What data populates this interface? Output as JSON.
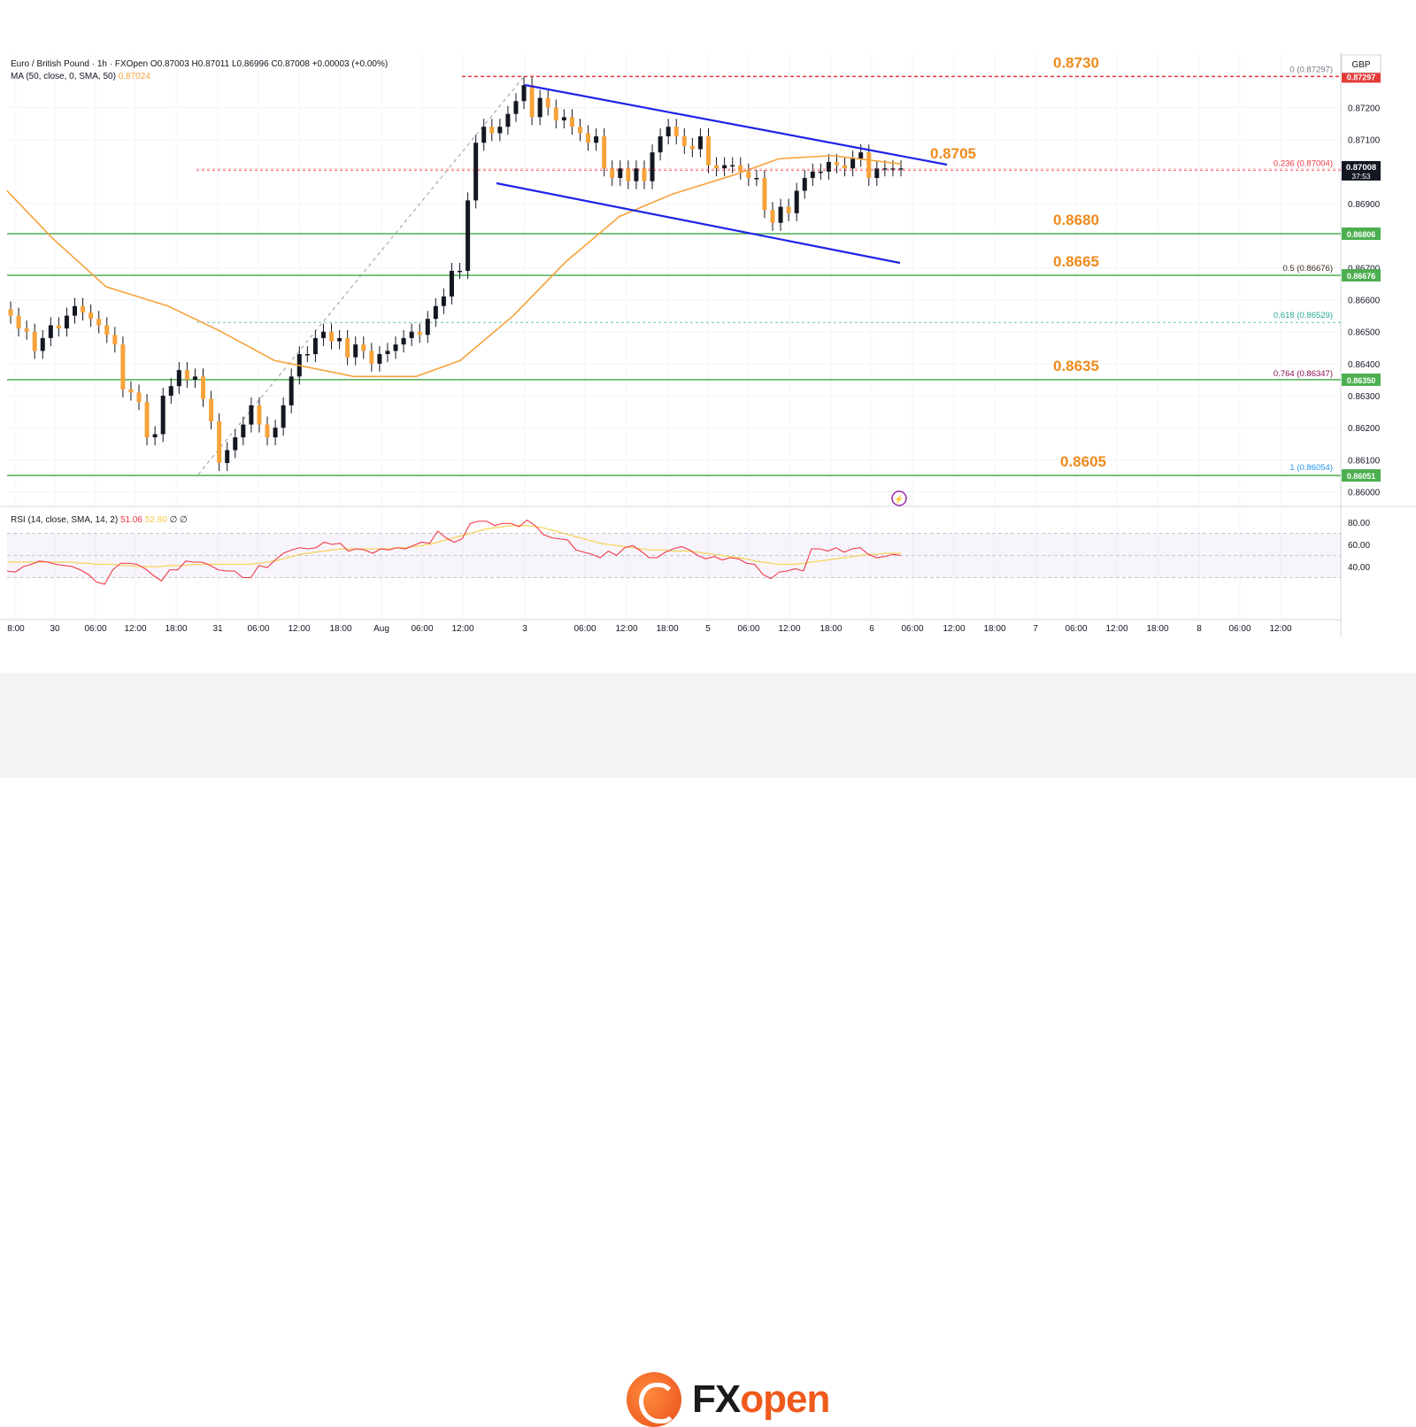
{
  "header": {
    "symbol_line": "Euro / British Pound · 1h · FXOpen  O0.87003  H0.87011  L0.86996  C0.87008  +0.00003 (+0.00%)",
    "ma_label": "MA (50, close, 0, SMA, 50)",
    "ma_value": "0.87024",
    "currency": "GBP"
  },
  "rsi_panel": {
    "label": "RSI (14, close, SMA, 14, 2)",
    "rsi_value": "51.06",
    "sma_value": "52.80",
    "extra": "∅  ∅",
    "upper_band": 70,
    "lower_band": 30
  },
  "logo": {
    "fx": "FX",
    "open": "open"
  },
  "chart_data": {
    "type": "candlestick",
    "title": "",
    "x_axis": {
      "tick_labels": [
        "8:00",
        "30",
        "06:00",
        "12:00",
        "18:00",
        "31",
        "06:00",
        "12:00",
        "18:00",
        "Aug",
        "06:00",
        "12:00",
        "3",
        "06:00",
        "12:00",
        "18:00",
        "5",
        "06:00",
        "12:00",
        "18:00",
        "6",
        "06:00",
        "12:00",
        "18:00",
        "7",
        "06:00",
        "12:00",
        "18:00",
        "8",
        "06:00",
        "12:00"
      ]
    },
    "y_axis": {
      "range": [
        0.8596,
        0.8737
      ],
      "tick_labels": [
        "0.87200",
        "0.87100",
        "0.86900",
        "0.86700",
        "0.86600",
        "0.86500",
        "0.86400",
        "0.86300",
        "0.86200",
        "0.86100",
        "0.86000"
      ],
      "tick_values": [
        0.872,
        0.871,
        0.869,
        0.867,
        0.866,
        0.865,
        0.864,
        0.863,
        0.862,
        0.861,
        0.86
      ]
    },
    "price_tag": {
      "price": "0.87008",
      "countdown": "37:53",
      "value": 0.87008
    },
    "levels": [
      {
        "label": "0.8730",
        "value": 0.87297,
        "axis_tag": "0.87297",
        "color": "#e53935",
        "style": "dashed"
      },
      {
        "label": "0.8680",
        "value": 0.86806,
        "axis_tag": "0.86806",
        "color": "#4caf50",
        "style": "solid"
      },
      {
        "label": "0.8665",
        "value": 0.86676,
        "axis_tag": "0.86676",
        "color": "#4caf50",
        "style": "solid"
      },
      {
        "label": "0.8635",
        "value": 0.8635,
        "axis_tag": "0.86350",
        "color": "#4caf50",
        "style": "solid"
      },
      {
        "label": "0.8605",
        "value": 0.86051,
        "axis_tag": "0.86051",
        "color": "#4caf50",
        "style": "solid"
      }
    ],
    "trendline_label": "0.8705",
    "fibonacci": [
      {
        "label": "0 (0.87297)",
        "value": 0.87297,
        "color": "#787b86"
      },
      {
        "label": "0.236 (0.87004)",
        "value": 0.87004,
        "color": "#f23645"
      },
      {
        "label": "0.5 (0.86676)",
        "value": 0.86676,
        "color": "#3b2b1b"
      },
      {
        "label": "0.618 (0.86529)",
        "value": 0.86529,
        "color": "#22ab94"
      },
      {
        "label": "0.764 (0.86347)",
        "value": 0.86347,
        "color": "#880e4f"
      },
      {
        "label": "1 (0.86054)",
        "value": 0.86054,
        "color": "#2196f3"
      }
    ],
    "candles_close": [
      0.8655,
      0.8651,
      0.865,
      0.8644,
      0.8648,
      0.8652,
      0.8651,
      0.8655,
      0.8658,
      0.8656,
      0.8654,
      0.8652,
      0.8649,
      0.8646,
      0.8632,
      0.8631,
      0.8628,
      0.8617,
      0.8618,
      0.863,
      0.8633,
      0.8638,
      0.8635,
      0.8636,
      0.8629,
      0.8622,
      0.8609,
      0.8613,
      0.8617,
      0.8621,
      0.8627,
      0.8621,
      0.8617,
      0.862,
      0.8627,
      0.8636,
      0.8643,
      0.8643,
      0.8648,
      0.865,
      0.8647,
      0.8648,
      0.8642,
      0.8646,
      0.8644,
      0.864,
      0.8643,
      0.8644,
      0.8646,
      0.8648,
      0.865,
      0.8649,
      0.8654,
      0.8658,
      0.8661,
      0.8669,
      0.8669,
      0.8691,
      0.8709,
      0.8714,
      0.8712,
      0.8714,
      0.8718,
      0.8722,
      0.8727,
      0.8717,
      0.8723,
      0.872,
      0.8716,
      0.8717,
      0.8714,
      0.8712,
      0.8709,
      0.8711,
      0.8701,
      0.8698,
      0.8701,
      0.8697,
      0.8701,
      0.8697,
      0.8706,
      0.8711,
      0.8714,
      0.8711,
      0.8708,
      0.8707,
      0.8711,
      0.8702,
      0.8701,
      0.8702,
      0.8702,
      0.87,
      0.8698,
      0.8698,
      0.8688,
      0.8684,
      0.8689,
      0.8687,
      0.8694,
      0.8698,
      0.87,
      0.87,
      0.8703,
      0.8702,
      0.8701,
      0.8704,
      0.8706,
      0.8698,
      0.8701,
      0.8701,
      0.8701,
      0.8701
    ],
    "rsi_values": [
      36,
      35,
      40,
      42,
      45,
      44,
      42,
      41,
      40,
      37,
      33,
      26,
      24,
      37,
      43,
      43,
      42,
      38,
      32,
      27,
      37,
      37,
      45,
      44,
      44,
      41,
      37,
      36,
      36,
      30,
      30,
      41,
      39,
      46,
      52,
      55,
      57,
      56,
      57,
      62,
      60,
      61,
      54,
      56,
      55,
      52,
      56,
      55,
      57,
      56,
      59,
      62,
      61,
      72,
      66,
      62,
      65,
      79,
      81,
      81,
      77,
      79,
      79,
      76,
      82,
      77,
      69,
      66,
      65,
      64,
      55,
      53,
      51,
      48,
      54,
      50,
      57,
      59,
      54,
      48,
      48,
      53,
      56,
      58,
      55,
      50,
      47,
      49,
      46,
      48,
      47,
      43,
      42,
      33,
      29,
      35,
      36,
      38,
      36,
      56,
      56,
      54,
      57,
      53,
      56,
      57,
      51,
      48,
      49,
      51,
      50
    ],
    "rsi_sma_values": [
      44,
      44,
      44,
      44,
      44,
      44,
      44,
      44,
      44,
      43,
      43,
      42,
      42,
      42,
      41,
      41,
      40,
      40,
      40,
      40,
      41,
      41,
      41,
      42,
      42,
      42,
      42,
      42,
      42,
      42,
      42,
      43,
      44,
      45,
      47,
      49,
      51,
      52,
      53,
      54,
      55,
      56,
      56,
      56,
      56,
      56,
      56,
      56,
      57,
      57,
      58,
      59,
      60,
      62,
      64,
      66,
      68,
      70,
      72,
      74,
      75,
      76,
      77,
      77,
      77,
      76,
      75,
      73,
      71,
      69,
      67,
      65,
      63,
      61,
      60,
      59,
      58,
      57,
      56,
      55,
      55,
      55,
      54,
      54,
      54,
      53,
      52,
      51,
      50,
      49,
      48,
      47,
      45,
      44,
      43,
      42,
      42,
      42,
      43,
      44,
      45,
      46,
      47,
      48,
      49,
      50,
      51,
      51,
      52,
      52,
      52
    ]
  }
}
